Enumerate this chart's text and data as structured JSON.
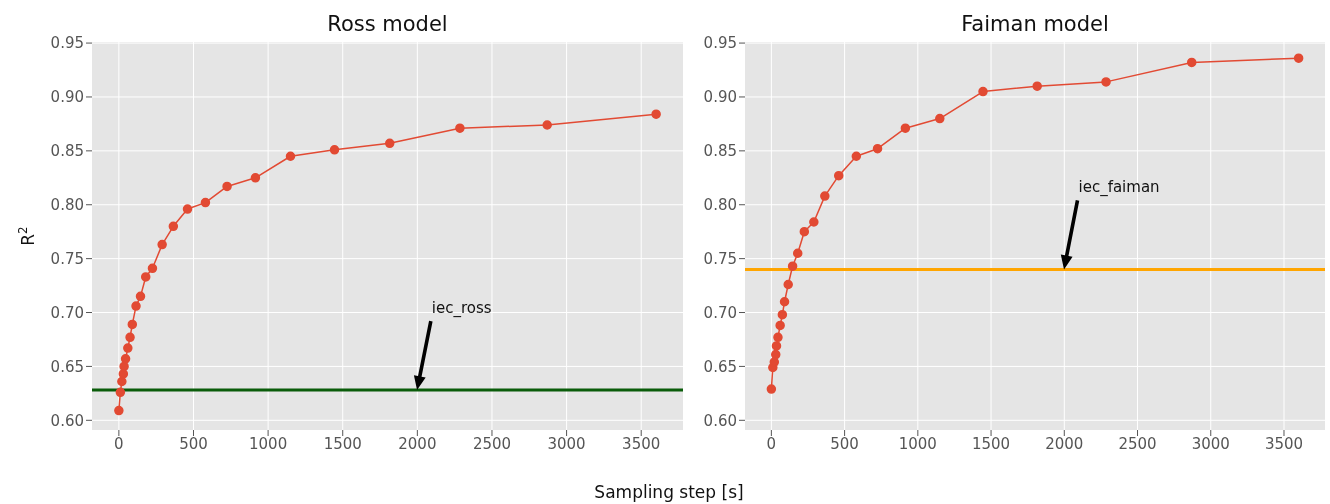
{
  "chart_data": [
    {
      "type": "line",
      "title": "Ross model",
      "xlabel": "Sampling step [s]",
      "ylabel": "R$^{2}$",
      "x": [
        0,
        10,
        20,
        30,
        35,
        45,
        60,
        75,
        90,
        115,
        145,
        180,
        225,
        290,
        365,
        460,
        580,
        725,
        915,
        1150,
        1445,
        1815,
        2285,
        2870,
        3600
      ],
      "series": [
        {
          "color": "#e24a33",
          "values": [
            0.609,
            0.626,
            0.636,
            0.643,
            0.65,
            0.657,
            0.667,
            0.677,
            0.689,
            0.706,
            0.715,
            0.733,
            0.741,
            0.763,
            0.78,
            0.796,
            0.802,
            0.817,
            0.825,
            0.845,
            0.851,
            0.857,
            0.871,
            0.874,
            0.884
          ]
        }
      ],
      "marker": "circle",
      "grid": true,
      "xlim": [
        -180,
        3780
      ],
      "ylim": [
        0.591,
        0.951
      ],
      "xticks": [
        0,
        500,
        1000,
        1500,
        2000,
        2500,
        3000,
        3500
      ],
      "yticks": [
        {
          "value": 0.6,
          "label": "0.60"
        },
        {
          "value": 0.65,
          "label": "0.65"
        },
        {
          "value": 0.7,
          "label": "0.70"
        },
        {
          "value": 0.75,
          "label": "0.75"
        },
        {
          "value": 0.8,
          "label": "0.80"
        },
        {
          "value": 0.85,
          "label": "0.85"
        },
        {
          "value": 0.9,
          "label": "0.90"
        },
        {
          "value": 0.95,
          "label": "0.95"
        }
      ],
      "ref_lines": [
        {
          "axis": "y",
          "value": 0.628,
          "color": "#0a5c0a"
        }
      ],
      "annotations": [
        "iec_ross"
      ]
    },
    {
      "type": "line",
      "title": "Faiman model",
      "x": [
        0,
        10,
        20,
        30,
        35,
        45,
        60,
        75,
        90,
        115,
        145,
        180,
        225,
        290,
        365,
        460,
        580,
        725,
        915,
        1150,
        1445,
        1815,
        2285,
        2870,
        3600
      ],
      "series": [
        {
          "color": "#e24a33",
          "values": [
            0.629,
            0.649,
            0.654,
            0.661,
            0.669,
            0.677,
            0.688,
            0.698,
            0.71,
            0.726,
            0.743,
            0.755,
            0.775,
            0.784,
            0.808,
            0.827,
            0.845,
            0.852,
            0.871,
            0.88,
            0.905,
            0.91,
            0.914,
            0.932,
            0.936
          ]
        }
      ],
      "marker": "circle",
      "grid": true,
      "xlim": [
        -180,
        3780
      ],
      "ylim": [
        0.591,
        0.951
      ],
      "xticks": [
        0,
        500,
        1000,
        1500,
        2000,
        2500,
        3000,
        3500
      ],
      "yticks": [
        {
          "value": 0.6,
          "label": "0.60"
        },
        {
          "value": 0.65,
          "label": "0.65"
        },
        {
          "value": 0.7,
          "label": "0.70"
        },
        {
          "value": 0.75,
          "label": "0.75"
        },
        {
          "value": 0.8,
          "label": "0.80"
        },
        {
          "value": 0.85,
          "label": "0.85"
        },
        {
          "value": 0.9,
          "label": "0.90"
        },
        {
          "value": 0.95,
          "label": "0.95"
        }
      ],
      "ref_lines": [
        {
          "axis": "y",
          "value": 0.74,
          "color": "#ffa500"
        }
      ],
      "annotations": [
        "iec_faiman"
      ]
    }
  ]
}
